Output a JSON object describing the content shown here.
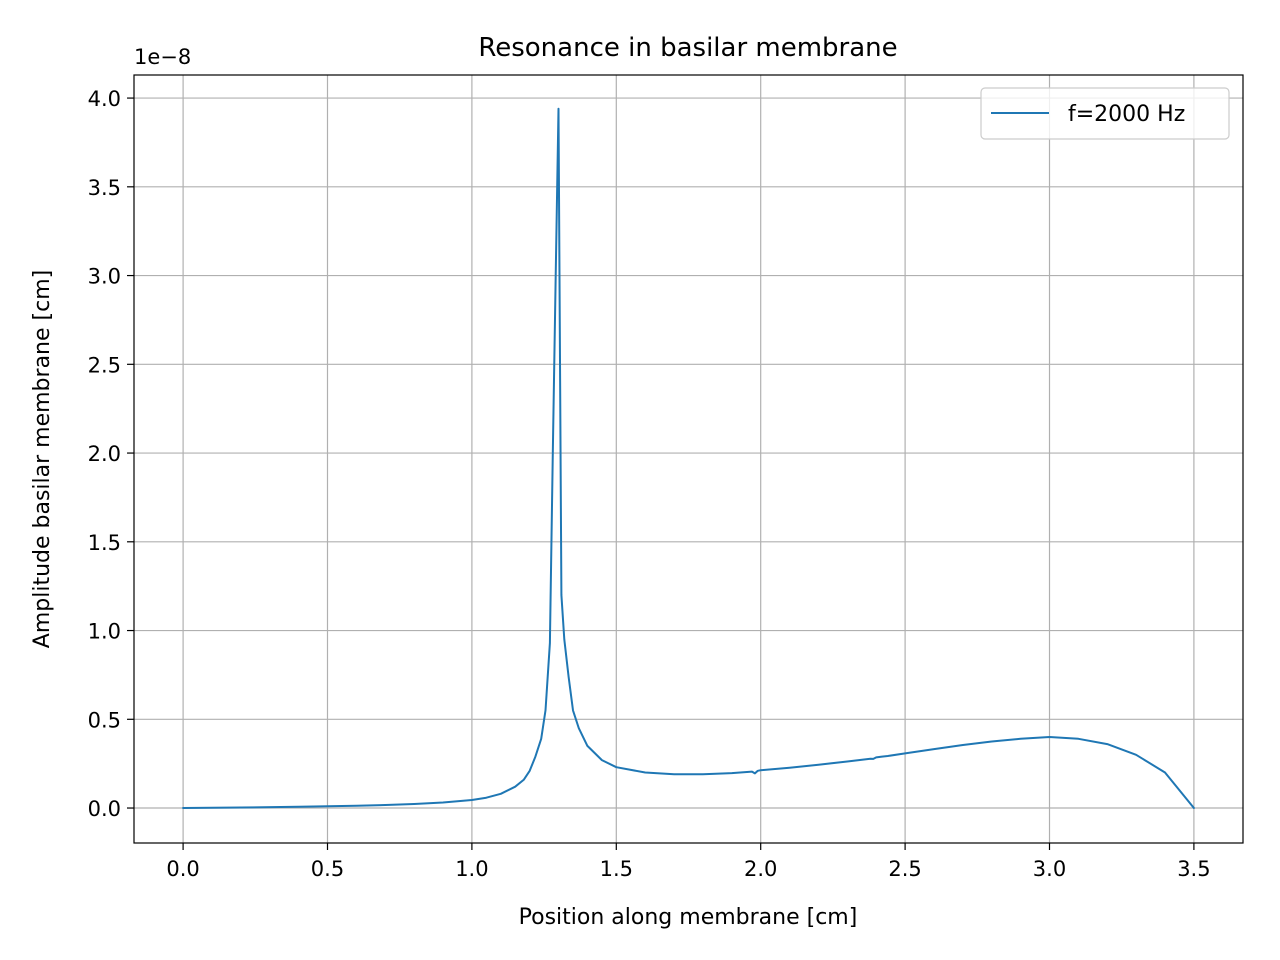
{
  "chart_data": {
    "type": "line",
    "title": "Resonance in basilar membrane",
    "xlabel": "Position along membrane [cm]",
    "ylabel": "Amplitude basilar membrane [cm]",
    "y_offset_label": "1e−8",
    "xlim": [
      -0.17,
      3.67
    ],
    "ylim": [
      -0.197,
      4.13
    ],
    "x_ticks": [
      0.0,
      0.5,
      1.0,
      1.5,
      2.0,
      2.5,
      3.0,
      3.5
    ],
    "x_tick_labels": [
      "0.0",
      "0.5",
      "1.0",
      "1.5",
      "2.0",
      "2.5",
      "3.0",
      "3.5"
    ],
    "y_ticks": [
      0.0,
      0.5,
      1.0,
      1.5,
      2.0,
      2.5,
      3.0,
      3.5,
      4.0
    ],
    "y_tick_labels": [
      "0.0",
      "0.5",
      "1.0",
      "1.5",
      "2.0",
      "2.5",
      "3.0",
      "3.5",
      "4.0"
    ],
    "grid": true,
    "legend_position": "top-right",
    "color": "#1f77b4",
    "series": [
      {
        "name": "f=2000 Hz",
        "x": [
          0.0,
          0.2,
          0.4,
          0.6,
          0.7,
          0.8,
          0.9,
          1.0,
          1.05,
          1.1,
          1.15,
          1.18,
          1.2,
          1.22,
          1.24,
          1.255,
          1.27,
          1.28,
          1.29,
          1.3,
          1.31,
          1.32,
          1.335,
          1.35,
          1.37,
          1.4,
          1.45,
          1.5,
          1.6,
          1.7,
          1.8,
          1.9,
          1.97,
          1.98,
          1.99,
          2.0,
          2.1,
          2.2,
          2.3,
          2.38,
          2.39,
          2.4,
          2.42,
          2.44,
          2.5,
          2.6,
          2.7,
          2.8,
          2.9,
          3.0,
          3.1,
          3.2,
          3.3,
          3.4,
          3.5
        ],
        "y": [
          0.0,
          0.003,
          0.007,
          0.013,
          0.017,
          0.023,
          0.031,
          0.045,
          0.058,
          0.08,
          0.12,
          0.16,
          0.21,
          0.29,
          0.39,
          0.55,
          0.93,
          2.0,
          3.0,
          3.94,
          1.2,
          0.95,
          0.74,
          0.55,
          0.45,
          0.35,
          0.27,
          0.23,
          0.2,
          0.19,
          0.19,
          0.197,
          0.205,
          0.195,
          0.21,
          0.213,
          0.227,
          0.244,
          0.262,
          0.278,
          0.277,
          0.285,
          0.29,
          0.293,
          0.308,
          0.332,
          0.355,
          0.375,
          0.39,
          0.4,
          0.39,
          0.36,
          0.3,
          0.2,
          0.0
        ]
      }
    ]
  }
}
